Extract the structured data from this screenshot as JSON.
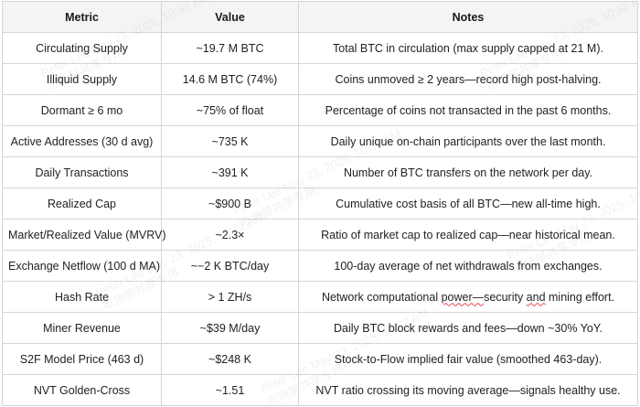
{
  "table": {
    "headers": [
      "Metric",
      "Value",
      "Notes"
    ],
    "rows": [
      {
        "metric": "Circulating Supply",
        "value": "~19.7 M BTC",
        "notes": "Total BTC in circulation (max supply capped at 21 M)."
      },
      {
        "metric": "Illiquid Supply",
        "value": "14.6 M BTC (74%)",
        "notes": "Coins unmoved ≥ 2 years—record high post-halving."
      },
      {
        "metric": "Dormant ≥ 6 mo",
        "value": "~75% of float",
        "notes": "Percentage of coins not transacted in the past 6 months."
      },
      {
        "metric": "Active Addresses (30 d avg)",
        "value": "~735 K",
        "notes": "Daily unique on-chain participants over the last month."
      },
      {
        "metric": "Daily Transactions",
        "value": "~391 K",
        "notes": "Number of BTC transfers on the network per day."
      },
      {
        "metric": "Realized Cap",
        "value": "~$900 B",
        "notes": "Cumulative cost basis of all BTC—new all-time high."
      },
      {
        "metric": "Market/Realized Value (MVRV)",
        "value": "~2.3×",
        "notes": "Ratio of market cap to realized cap—near historical mean."
      },
      {
        "metric": "Exchange Netflow (100 d MA)",
        "value": "~−2 K BTC/day",
        "notes": "100-day average of net withdrawals from exchanges."
      },
      {
        "metric": "Hash Rate",
        "value": "> 1 ZH/s",
        "notes_parts": [
          "Network computational ",
          "power—",
          "security ",
          "and",
          " mining effort."
        ]
      },
      {
        "metric": "Miner Revenue",
        "value": "~$39 M/day",
        "notes": "Daily BTC block rewards and fees—down ~30% YoY."
      },
      {
        "metric": "S2F Model Price (463 d)",
        "value": "~$248 K",
        "notes": "Stock-to-Flow implied fair value (smoothed 463-day)."
      },
      {
        "metric": "NVT Golden-Cross",
        "value": "~1.51",
        "notes": "NVT ratio crossing its moving average—signals healthy use."
      }
    ]
  },
  "watermark": {
    "line1": "Peter Lee May 23, 2025, 10:32 AM",
    "line2": "市场部共享专用"
  }
}
